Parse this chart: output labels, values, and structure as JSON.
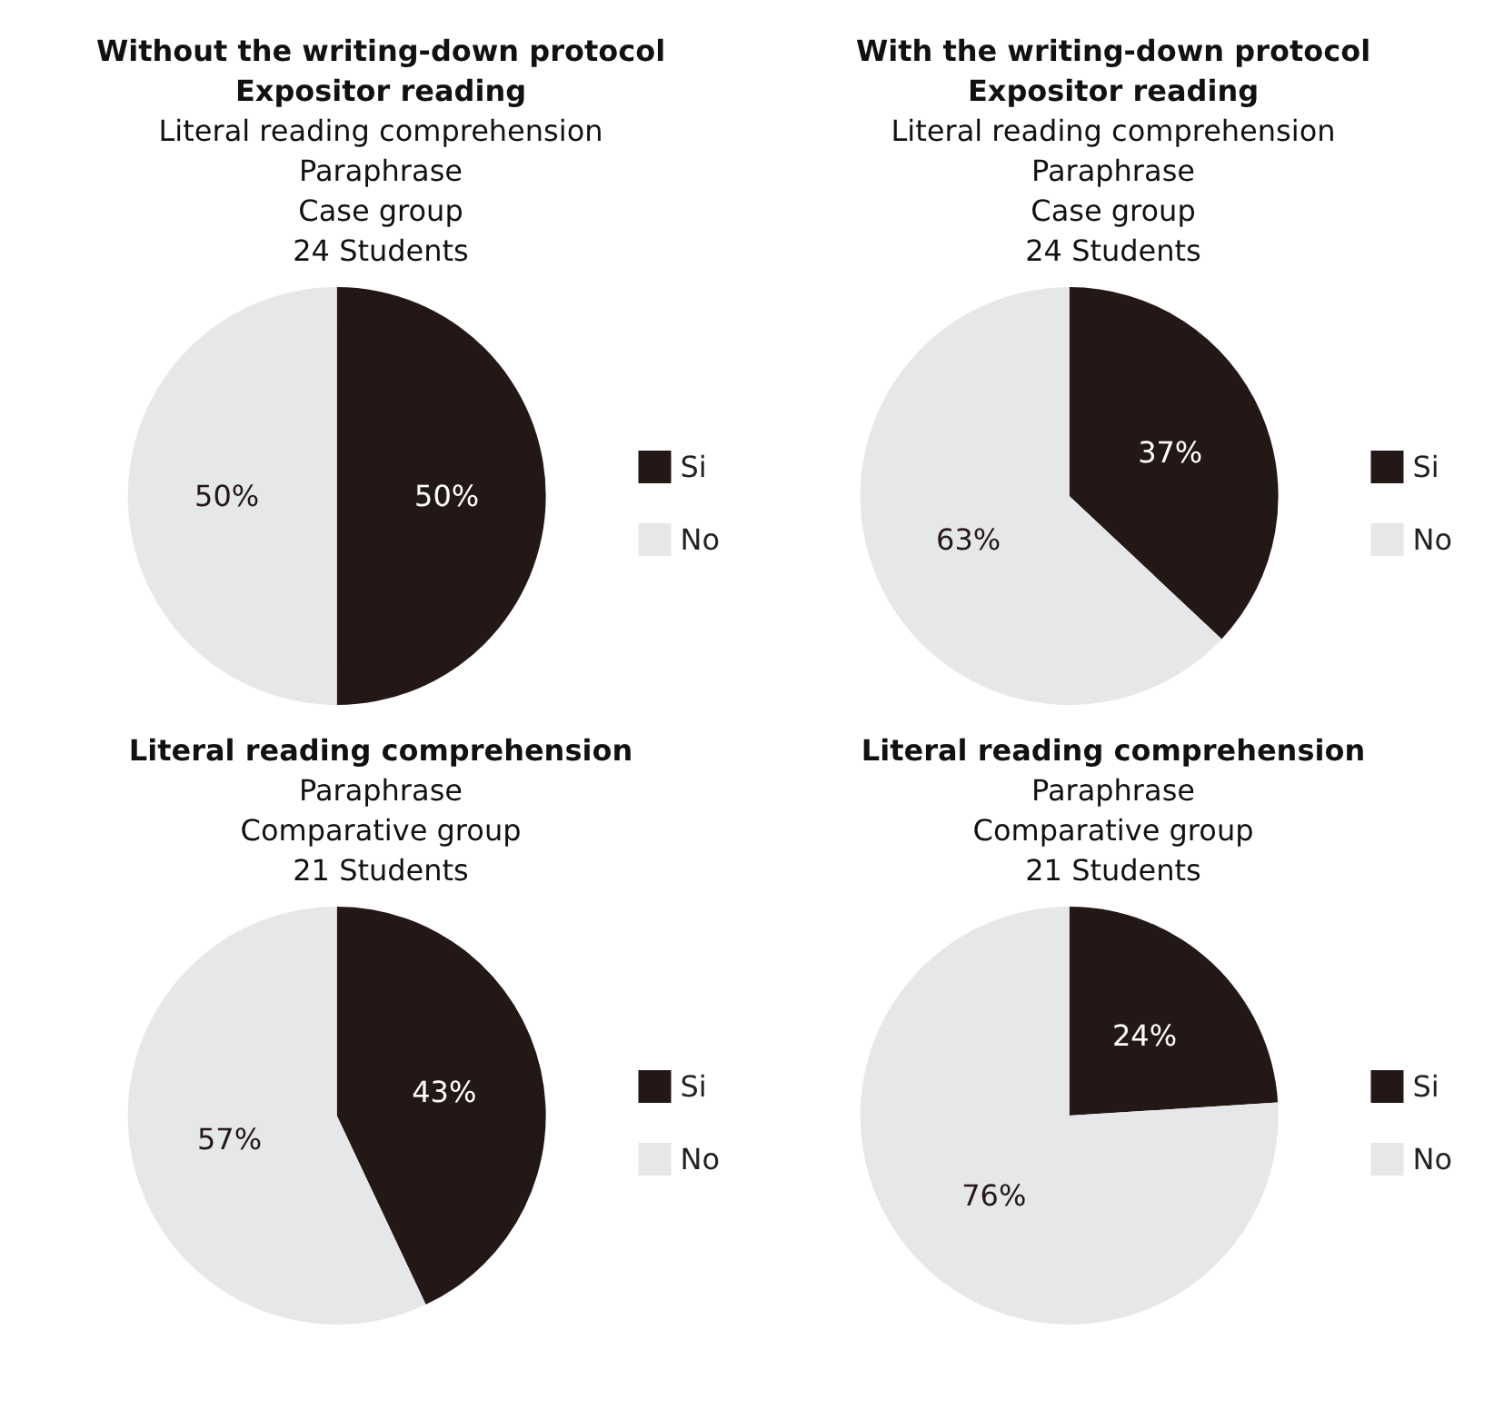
{
  "chart_data": [
    {
      "type": "pie",
      "title": "Without the writing-down protocol\nExpositor reading",
      "subtitle": "Literal reading comprehension\nParaphrase\nCase group\n24 Students",
      "categories": [
        "Si",
        "No"
      ],
      "values": [
        50,
        50
      ],
      "value_labels": [
        "50%",
        "50%"
      ],
      "colors": [
        "#231815",
        "#e6e7e9"
      ],
      "legend": "right"
    },
    {
      "type": "pie",
      "title": "With the writing-down protocol\nExpositor reading",
      "subtitle": "Literal reading comprehension\nParaphrase\nCase group\n24 Students",
      "categories": [
        "Si",
        "No"
      ],
      "values": [
        37,
        63
      ],
      "value_labels": [
        "37%",
        "63%"
      ],
      "colors": [
        "#231815",
        "#e6e7e9"
      ],
      "legend": "right"
    },
    {
      "type": "pie",
      "title": "Literal reading comprehension",
      "subtitle": "Paraphrase\nComparative group\n21 Students",
      "categories": [
        "Si",
        "No"
      ],
      "values": [
        43,
        57
      ],
      "value_labels": [
        "43%",
        "57%"
      ],
      "colors": [
        "#231815",
        "#e6e7e9"
      ],
      "legend": "right"
    },
    {
      "type": "pie",
      "title": "Literal reading comprehension",
      "subtitle": "Paraphrase\nComparative group\n21 Students",
      "categories": [
        "Si",
        "No"
      ],
      "values": [
        24,
        76
      ],
      "value_labels": [
        "24%",
        "76%"
      ],
      "colors": [
        "#231815",
        "#e6e7e9"
      ],
      "legend": "right"
    }
  ]
}
